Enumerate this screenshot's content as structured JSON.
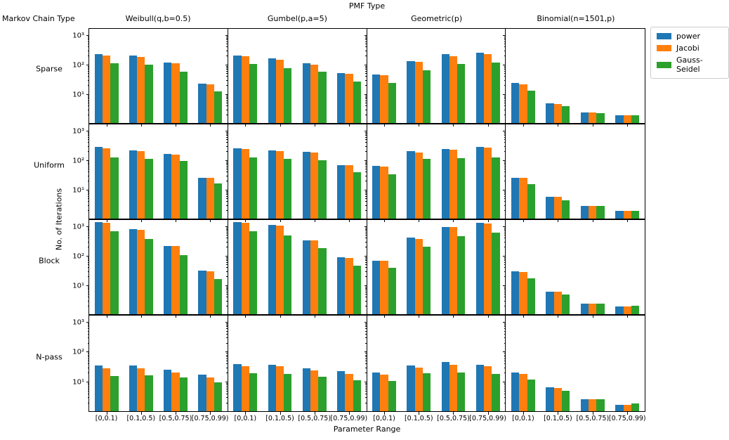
{
  "figure": {
    "title": "PMF Type",
    "corner_label": "Markov Chain Type",
    "xlabel": "Parameter Range",
    "ylabel": "No. of Iterations"
  },
  "legend": {
    "items": [
      {
        "label": "power",
        "color": "#1f77b4"
      },
      {
        "label": "Jacobi",
        "color": "#ff7f0e"
      },
      {
        "label": "Gauss-Seidel",
        "color": "#2ca02c"
      }
    ]
  },
  "chart_data": {
    "type": "bar",
    "layout": "4x4 grid of subplots; rows = Markov Chain Type, cols = PMF Type; shared log y-axis",
    "rows": [
      "Sparse",
      "Uniform",
      "Block",
      "N-pass"
    ],
    "cols": [
      "Weibull(q,b=0.5)",
      "Gumbel(p,a=5)",
      "Geometric(p)",
      "Binomial(n=1501,p)"
    ],
    "categories": [
      "[0,0.1)",
      "[0.1,0.5)",
      "[0.5,0.75)",
      "[0.75,0.99)"
    ],
    "series_names": [
      "power",
      "Jacobi",
      "Gauss-Seidel"
    ],
    "series_colors": [
      "#1f77b4",
      "#ff7f0e",
      "#2ca02c"
    ],
    "yscale": "log",
    "ylim": [
      1.1,
      1700
    ],
    "yticks": {
      "values": [
        10,
        100,
        1000
      ],
      "labels": [
        "10¹",
        "10²",
        "10³"
      ]
    },
    "panels": [
      {
        "row": "Sparse",
        "col": "Weibull(q,b=0.5)",
        "series": [
          [
            240,
            208,
            125,
            24
          ],
          [
            215,
            190,
            116,
            22
          ],
          [
            116,
            104,
            61,
            13
          ]
        ]
      },
      {
        "row": "Sparse",
        "col": "Gumbel(p,a=5)",
        "series": [
          [
            215,
            166,
            116,
            55
          ],
          [
            200,
            149,
            104,
            50
          ],
          [
            110,
            80,
            60,
            28
          ]
        ]
      },
      {
        "row": "Sparse",
        "col": "Geometric(p)",
        "series": [
          [
            47,
            140,
            240,
            270
          ],
          [
            46,
            126,
            205,
            240
          ],
          [
            25,
            66,
            112,
            125
          ]
        ]
      },
      {
        "row": "Sparse",
        "col": "Binomial(n=1501,p)",
        "series": [
          [
            25,
            5,
            2.5,
            2
          ],
          [
            23,
            4.9,
            2.5,
            2
          ],
          [
            14,
            4,
            2.4,
            2
          ]
        ]
      },
      {
        "row": "Uniform",
        "col": "Weibull(q,b=0.5)",
        "series": [
          [
            288,
            219,
            168,
            27
          ],
          [
            263,
            209,
            159,
            26
          ],
          [
            133,
            113,
            98,
            17
          ]
        ]
      },
      {
        "row": "Uniform",
        "col": "Gumbel(p,a=5)",
        "series": [
          [
            260,
            218,
            200,
            72
          ],
          [
            245,
            208,
            193,
            70
          ],
          [
            132,
            114,
            104,
            41
          ]
        ]
      },
      {
        "row": "Uniform",
        "col": "Geometric(p)",
        "series": [
          [
            67,
            210,
            250,
            288
          ],
          [
            65,
            194,
            240,
            274
          ],
          [
            35,
            113,
            124,
            133
          ]
        ]
      },
      {
        "row": "Uniform",
        "col": "Binomial(n=1501,p)",
        "series": [
          [
            27,
            6,
            3,
            2
          ],
          [
            26,
            6,
            3,
            2
          ],
          [
            16,
            4.7,
            2.9,
            2
          ]
        ]
      },
      {
        "row": "Block",
        "col": "Weibull(q,b=0.5)",
        "series": [
          [
            1450,
            820,
            227,
            33
          ],
          [
            1380,
            780,
            218,
            32
          ],
          [
            725,
            390,
            111,
            17
          ]
        ]
      },
      {
        "row": "Block",
        "col": "Gumbel(p,a=5)",
        "series": [
          [
            1450,
            1130,
            355,
            95
          ],
          [
            1400,
            1080,
            345,
            90
          ],
          [
            725,
            500,
            190,
            48
          ]
        ]
      },
      {
        "row": "Block",
        "col": "Geometric(p)",
        "series": [
          [
            71,
            440,
            980,
            1350
          ],
          [
            70,
            390,
            960,
            1290
          ],
          [
            40,
            215,
            480,
            630
          ]
        ]
      },
      {
        "row": "Block",
        "col": "Binomial(n=1501,p)",
        "series": [
          [
            31,
            6.4,
            2.5,
            2
          ],
          [
            30,
            6.4,
            2.5,
            2
          ],
          [
            18,
            5,
            2.5,
            2.1
          ]
        ]
      },
      {
        "row": "N-pass",
        "col": "Weibull(q,b=0.5)",
        "series": [
          [
            36,
            37,
            26,
            18
          ],
          [
            29,
            30,
            22,
            15
          ],
          [
            16,
            17,
            15,
            10
          ]
        ]
      },
      {
        "row": "N-pass",
        "col": "Gumbel(p,a=5)",
        "series": [
          [
            40,
            39,
            29,
            24
          ],
          [
            35,
            34,
            25,
            19
          ],
          [
            20,
            19.5,
            15.5,
            12
          ]
        ]
      },
      {
        "row": "N-pass",
        "col": "Geometric(p)",
        "series": [
          [
            21,
            37,
            48,
            39
          ],
          [
            18,
            31,
            38,
            34
          ],
          [
            11.5,
            20,
            22,
            19
          ]
        ]
      },
      {
        "row": "N-pass",
        "col": "Binomial(n=1501,p)",
        "series": [
          [
            22,
            6.8,
            2.7,
            1.8
          ],
          [
            19,
            6.7,
            2.7,
            1.8
          ],
          [
            12.6,
            5.2,
            2.7,
            2
          ]
        ]
      }
    ]
  }
}
